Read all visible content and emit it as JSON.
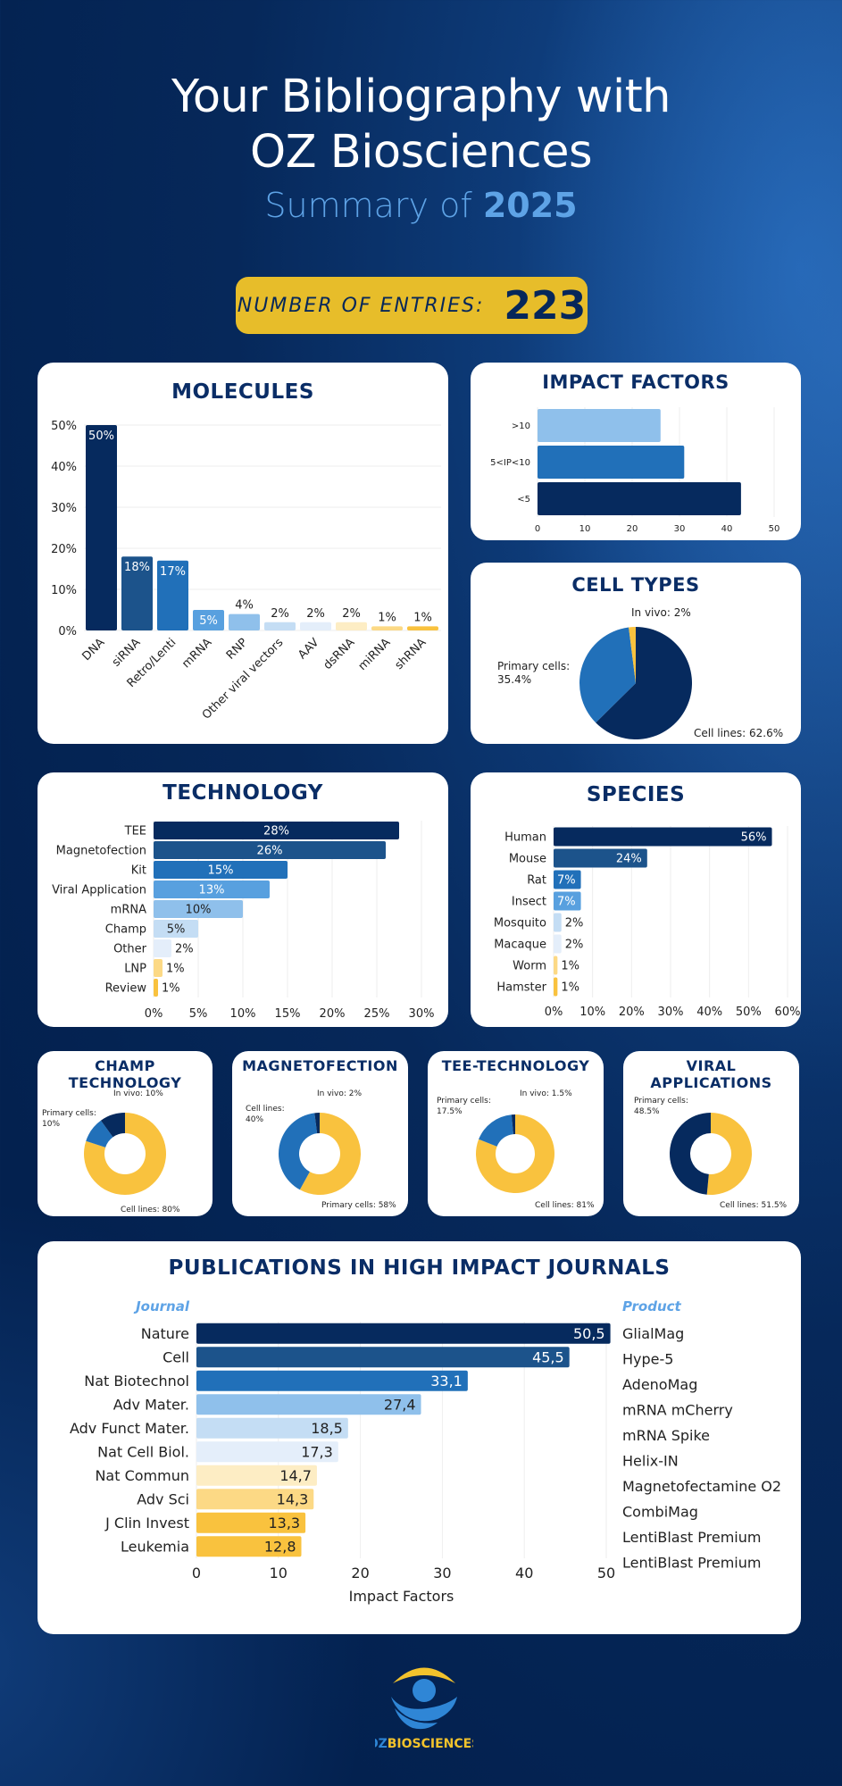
{
  "header": {
    "title_line1": "Your Bibliography with",
    "title_line2": "OZ Biosciences",
    "subtitle_prefix": "Summary of",
    "year": "2025"
  },
  "entries": {
    "label": "NUMBER OF ENTRIES:",
    "count": "223"
  },
  "colors": {
    "navy": "#062a5e",
    "blue_dark": "#1c538b",
    "blue": "#2170b9",
    "blue_mid": "#58a0df",
    "blue_light": "#8fc0eb",
    "blue_pale": "#c4ddf4",
    "blue_faint": "#e4eefa",
    "yellow_faint": "#fdedc4",
    "yellow_light": "#fcd985",
    "yellow": "#f9c23e",
    "badge": "#e7bd2a"
  },
  "chart_data": [
    {
      "id": "molecules",
      "type": "bar",
      "title": "MOLECULES",
      "categories": [
        "DNA",
        "siRNA",
        "Retro/Lenti",
        "mRNA",
        "RNP",
        "Other viral vectors",
        "AAV",
        "dsRNA",
        "miRNA",
        "shRNA"
      ],
      "values": [
        50,
        18,
        17,
        5,
        4,
        2,
        2,
        2,
        1,
        1
      ],
      "labels": [
        "50%",
        "18%",
        "17%",
        "5%",
        "4%",
        "2%",
        "2%",
        "2%",
        "1%",
        "1%"
      ],
      "yticks": [
        "0%",
        "10%",
        "20%",
        "30%",
        "40%",
        "50%"
      ],
      "ylim": [
        0,
        50
      ],
      "grid": true
    },
    {
      "id": "impact_factors",
      "type": "bar",
      "orientation": "horizontal",
      "title": "IMPACT FACTORS",
      "categories": [
        ">10",
        "5<IP<10",
        "<5"
      ],
      "values": [
        26,
        31,
        43
      ],
      "xticks": [
        "0",
        "10",
        "20",
        "30",
        "40",
        "50"
      ],
      "xlim": [
        0,
        50
      ],
      "grid": true
    },
    {
      "id": "cell_types",
      "type": "pie",
      "title": "CELL TYPES",
      "slices": [
        {
          "label": "Cell lines: 62.6%",
          "name": "Cell lines",
          "value": 62.6
        },
        {
          "label": "Primary cells: 35.4%",
          "name": "Primary cells",
          "value": 35.4
        },
        {
          "label": "In vivo: 2%",
          "name": "In vivo",
          "value": 2
        }
      ]
    },
    {
      "id": "technology",
      "type": "bar",
      "orientation": "horizontal",
      "title": "TECHNOLOGY",
      "categories": [
        "TEE",
        "Magnetofection",
        "Kit",
        "Viral Application",
        "mRNA",
        "Champ",
        "Other",
        "LNP",
        "Review"
      ],
      "values": [
        27.5,
        26,
        15,
        13,
        10,
        5,
        2,
        1,
        0.5
      ],
      "labels": [
        "28%",
        "26%",
        "15%",
        "13%",
        "10%",
        "5%",
        "2%",
        "1%",
        "1%"
      ],
      "xticks": [
        "0%",
        "5%",
        "10%",
        "15%",
        "20%",
        "25%",
        "30%"
      ],
      "xlim": [
        0,
        30
      ],
      "grid": true
    },
    {
      "id": "species",
      "type": "bar",
      "orientation": "horizontal",
      "title": "SPECIES",
      "categories": [
        "Human",
        "Mouse",
        "Rat",
        "Insect",
        "Mosquito",
        "Macaque",
        "Worm",
        "Hamster"
      ],
      "values": [
        56,
        24,
        7,
        7,
        2,
        2,
        1,
        1
      ],
      "labels": [
        "56%",
        "24%",
        "7%",
        "7%",
        "2%",
        "2%",
        "1%",
        "1%"
      ],
      "xticks": [
        "0%",
        "10%",
        "20%",
        "30%",
        "40%",
        "50%",
        "60%"
      ],
      "xlim": [
        0,
        60
      ],
      "grid": true
    },
    {
      "id": "champ",
      "type": "pie",
      "donut": true,
      "title": "CHAMP TECHNOLOGY",
      "slices": [
        {
          "label": "Cell lines: 80%",
          "value": 80
        },
        {
          "label": "Primary cells: 10%",
          "value": 10
        },
        {
          "label": "In vivo: 10%",
          "value": 10
        }
      ]
    },
    {
      "id": "magnetofection",
      "type": "pie",
      "donut": true,
      "title": "MAGNETOFECTION",
      "slices": [
        {
          "label": "Primary cells: 58%",
          "value": 58
        },
        {
          "label": "Cell lines: 40%",
          "value": 40
        },
        {
          "label": "In vivo: 2%",
          "value": 2
        }
      ]
    },
    {
      "id": "tee",
      "type": "pie",
      "donut": true,
      "title": "TEE-TECHNOLOGY",
      "slices": [
        {
          "label": "Cell lines: 81%",
          "value": 81
        },
        {
          "label": "Primary cells: 17.5%",
          "value": 17.5
        },
        {
          "label": "In vivo: 1.5%",
          "value": 1.5
        }
      ]
    },
    {
      "id": "viral",
      "type": "pie",
      "donut": true,
      "title": "VIRAL APPLICATIONS",
      "slices": [
        {
          "label": "Cell lines: 51.5%",
          "value": 51.5
        },
        {
          "label": "Primary cells: 48.5%",
          "value": 48.5
        }
      ]
    },
    {
      "id": "journals",
      "type": "bar",
      "orientation": "horizontal",
      "title": "PUBLICATIONS IN HIGH IMPACT JOURNALS",
      "column_left": "Journal",
      "column_right": "Product",
      "xlabel": "Impact Factors",
      "categories": [
        "Nature",
        "Cell",
        "Nat Biotechnol",
        "Adv Mater.",
        "Adv Funct Mater.",
        "Nat Cell Biol.",
        "Nat Commun",
        "Adv Sci",
        "J Clin Invest",
        "Leukemia"
      ],
      "values": [
        50.5,
        45.5,
        33.1,
        27.4,
        18.5,
        17.3,
        14.7,
        14.3,
        13.3,
        12.8
      ],
      "labels": [
        "50,5",
        "45,5",
        "33,1",
        "27,4",
        "18,5",
        "17,3",
        "14,7",
        "14,3",
        "13,3",
        "12,8"
      ],
      "products": [
        "GlialMag",
        "Hype-5",
        "AdenoMag",
        "mRNA mCherry",
        "mRNA Spike",
        "Helix-IN",
        "Magnetofectamine O2",
        "CombiMag",
        "LentiBlast Premium",
        "LentiBlast Premium"
      ],
      "xticks": [
        "0",
        "10",
        "20",
        "30",
        "40",
        "50"
      ],
      "xlim": [
        0,
        50
      ],
      "grid": true
    }
  ],
  "footer": {
    "logo_oz": "OZ",
    "logo_bio": "BIOSCIENCES"
  }
}
